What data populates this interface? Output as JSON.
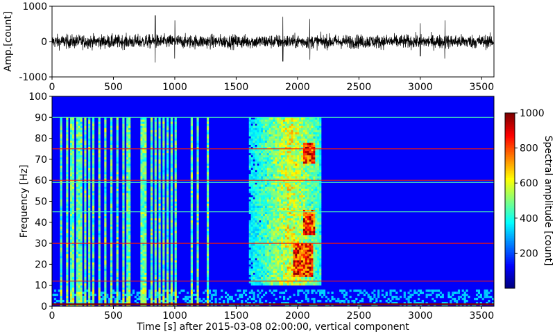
{
  "chart_data": [
    {
      "type": "line",
      "panel": "waveform",
      "ylabel": "Amp.[count]",
      "xlim": [
        0,
        3600
      ],
      "ylim": [
        -1000,
        1000
      ],
      "x_ticks": [
        0,
        500,
        1000,
        1500,
        2000,
        2500,
        3000,
        3500
      ],
      "y_ticks": [
        -1000,
        0,
        1000
      ],
      "series": [
        {
          "color": "#000000",
          "approx_envelope": {
            "typical_abs": 350,
            "peaks": [
              [
                840,
                740
              ],
              [
                1880,
                700
              ],
              [
                1000,
                600
              ],
              [
                3200,
                600
              ],
              [
                2100,
                640
              ],
              [
                3000,
                520
              ]
            ]
          }
        }
      ]
    },
    {
      "type": "heatmap",
      "panel": "spectrogram",
      "xlabel": "Time [s] after 2015-03-08 02:00:00, vertical component",
      "ylabel": "Frequency [Hz]",
      "xlim": [
        0,
        3600
      ],
      "ylim": [
        0,
        100
      ],
      "x_ticks": [
        0,
        500,
        1000,
        1500,
        2000,
        2500,
        3000,
        3500
      ],
      "y_ticks": [
        0,
        10,
        20,
        30,
        40,
        50,
        60,
        70,
        80,
        90,
        100
      ],
      "colormap": "jet",
      "colorbar": {
        "label": "Spectral amplitude [count]",
        "ticks": [
          200,
          400,
          600,
          800,
          1000
        ],
        "range": [
          0,
          1000
        ]
      },
      "features": {
        "horizontal_lines_hz": [
          1,
          12,
          30,
          45,
          59,
          60,
          75,
          90
        ],
        "strong_lines_hz": [
          1,
          12,
          30,
          60,
          75
        ],
        "burst_region": {
          "t": [
            1600,
            2200
          ],
          "f": [
            10,
            92
          ]
        },
        "burst_hotspots": [
          {
            "t": [
              1970,
              2130
            ],
            "f": [
              14,
              30
            ]
          },
          {
            "t": [
              2050,
              2150
            ],
            "f": [
              68,
              78
            ]
          },
          {
            "t": [
              2040,
              2140
            ],
            "f": [
              34,
              46
            ]
          }
        ],
        "vertical_streak_times_s": [
          60,
          110,
          140,
          160,
          190,
          210,
          230,
          260,
          290,
          330,
          380,
          420,
          480,
          520,
          580,
          605,
          620,
          720,
          740,
          760,
          800,
          830,
          870,
          900,
          930,
          960,
          990,
          1130,
          1170,
          1260
        ],
        "noise_ceiling_hz": 90
      }
    }
  ]
}
